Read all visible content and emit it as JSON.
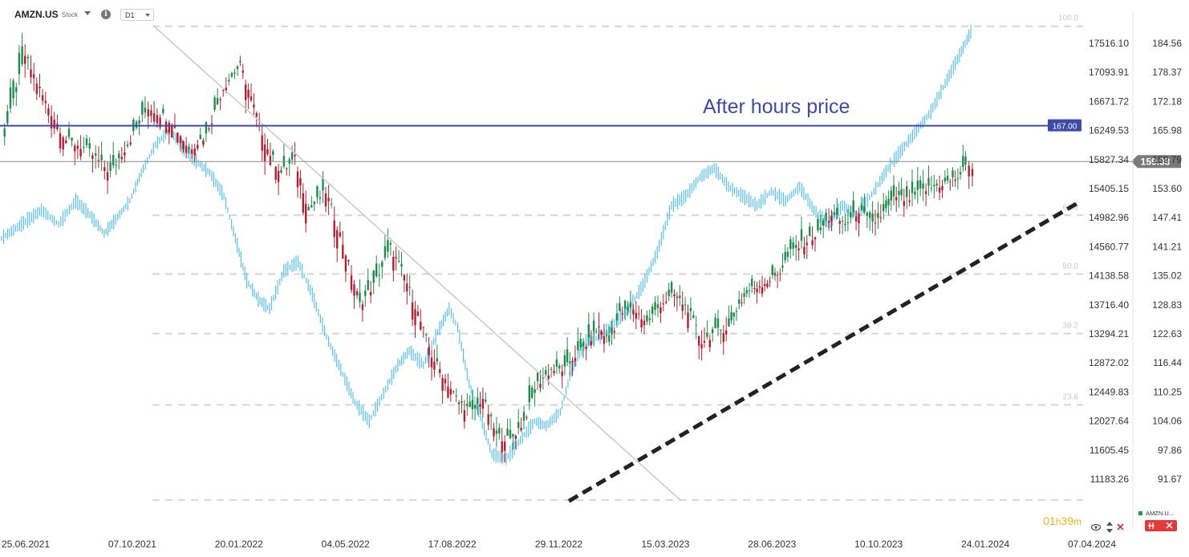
{
  "header": {
    "symbol": "AMZN.US",
    "type": "Stock",
    "timeframe": "D1"
  },
  "annotation": {
    "text": "After hours price"
  },
  "price_tags": {
    "after_hours": "167.00",
    "current": "159.38"
  },
  "countdown": {
    "hours": "01",
    "hours_unit": "h",
    "minutes": "39",
    "minutes_unit": "m"
  },
  "legend": {
    "label": "AMZN.U..."
  },
  "colors": {
    "blue_line": "#3f4aa8",
    "index_line": "#5bc0e8",
    "candle_up": "#1f8a4c",
    "candle_down": "#b02030",
    "current_tag": "#7a7a7a",
    "countdown": "#f0b020"
  },
  "chart_data": {
    "type": "line",
    "x": [
      "25.06.2021",
      "07.10.2021",
      "20.01.2022",
      "04.05.2022",
      "17.08.2022",
      "29.11.2022",
      "15.03.2023",
      "28.06.2023",
      "10.10.2023",
      "24.01.2024",
      "07.04.2024"
    ],
    "y_right_ticks": [
      184.56,
      178.37,
      172.18,
      165.98,
      159.79,
      153.6,
      147.41,
      141.21,
      135.02,
      128.83,
      122.63,
      116.44,
      110.25,
      104.06,
      97.86,
      91.67
    ],
    "y_left_ticks": [
      17516.1,
      17093.91,
      16671.72,
      16249.53,
      15827.34,
      15405.15,
      14982.96,
      14560.77,
      14138.58,
      13716.4,
      13294.21,
      12872.02,
      12449.83,
      12027.64,
      11605.45,
      11183.26
    ],
    "ylim_right": [
      86.6,
      191.4
    ],
    "fib_levels": [
      {
        "label": "100.0",
        "value": 188.2
      },
      {
        "label": "61.8",
        "value": 147.9
      },
      {
        "label": "50.0",
        "value": 135.4
      },
      {
        "label": "38.2",
        "value": 122.7
      },
      {
        "label": "23.6",
        "value": 107.5
      },
      {
        "label": "",
        "value": 87.2
      }
    ],
    "horizontal_lines": [
      {
        "name": "after_hours",
        "value": 167.0
      },
      {
        "name": "current",
        "value": 159.38
      }
    ],
    "series": [
      {
        "name": "AMZN.US",
        "points": [
          [
            0,
            165
          ],
          [
            0.3,
            182
          ],
          [
            0.6,
            172
          ],
          [
            0.9,
            164
          ],
          [
            1.2,
            162
          ],
          [
            1.55,
            157
          ],
          [
            1.8,
            163
          ],
          [
            2.1,
            171
          ],
          [
            2.45,
            168
          ],
          [
            2.7,
            162
          ],
          [
            2.95,
            165
          ],
          [
            3.2,
            175
          ],
          [
            3.45,
            180
          ],
          [
            3.65,
            171
          ],
          [
            3.85,
            162
          ],
          [
            4.05,
            157
          ],
          [
            4.25,
            160
          ],
          [
            4.45,
            149
          ],
          [
            4.7,
            153
          ],
          [
            4.95,
            142
          ],
          [
            5.2,
            129
          ],
          [
            5.4,
            133
          ],
          [
            5.65,
            141
          ],
          [
            5.85,
            135
          ],
          [
            6.05,
            127
          ],
          [
            6.25,
            118
          ],
          [
            6.45,
            113
          ],
          [
            6.65,
            108
          ],
          [
            6.85,
            106
          ],
          [
            7.0,
            109
          ],
          [
            7.2,
            101
          ],
          [
            7.4,
            100
          ],
          [
            7.6,
            104
          ],
          [
            7.8,
            112
          ],
          [
            8.0,
            115
          ],
          [
            8.2,
            115
          ],
          [
            8.35,
            118
          ],
          [
            8.55,
            121
          ],
          [
            8.7,
            124
          ],
          [
            8.85,
            121
          ],
          [
            9.0,
            127
          ],
          [
            9.2,
            128
          ],
          [
            9.4,
            125
          ],
          [
            9.6,
            129
          ],
          [
            9.8,
            131
          ],
          [
            10.0,
            128
          ],
          [
            10.2,
            121
          ],
          [
            10.4,
            123
          ],
          [
            10.6,
            124
          ],
          [
            10.75,
            129
          ],
          [
            10.9,
            132
          ],
          [
            11.05,
            133
          ],
          [
            11.2,
            134
          ],
          [
            11.35,
            136
          ],
          [
            11.5,
            140
          ],
          [
            11.7,
            142
          ],
          [
            11.9,
            144
          ],
          [
            12.1,
            148
          ],
          [
            12.3,
            146
          ],
          [
            12.5,
            149
          ],
          [
            12.7,
            146
          ],
          [
            12.9,
            149
          ],
          [
            13.05,
            152
          ],
          [
            13.2,
            151
          ],
          [
            13.4,
            153
          ],
          [
            13.6,
            154
          ],
          [
            13.8,
            155
          ],
          [
            13.95,
            156
          ],
          [
            14.1,
            159
          ],
          [
            14.2,
            157
          ]
        ]
      },
      {
        "name": "",
        "points": [
          [
            0,
            143
          ],
          [
            0.35,
            146
          ],
          [
            0.7,
            149
          ],
          [
            1.0,
            146
          ],
          [
            1.3,
            151
          ],
          [
            1.55,
            148
          ],
          [
            1.8,
            144
          ],
          [
            2.0,
            147
          ],
          [
            2.25,
            151
          ],
          [
            2.45,
            157
          ],
          [
            2.7,
            163
          ],
          [
            2.95,
            166
          ],
          [
            3.2,
            162
          ],
          [
            3.45,
            159
          ],
          [
            3.65,
            157
          ],
          [
            3.9,
            152
          ],
          [
            4.1,
            143
          ],
          [
            4.3,
            134
          ],
          [
            4.5,
            130
          ],
          [
            4.7,
            128
          ],
          [
            4.95,
            136
          ],
          [
            5.2,
            138
          ],
          [
            5.45,
            131
          ],
          [
            5.7,
            122
          ],
          [
            5.95,
            115
          ],
          [
            6.2,
            108
          ],
          [
            6.45,
            104
          ],
          [
            6.7,
            110
          ],
          [
            6.95,
            116
          ],
          [
            7.15,
            119
          ],
          [
            7.4,
            116
          ],
          [
            7.65,
            123
          ],
          [
            7.85,
            128
          ],
          [
            8.0,
            124
          ],
          [
            8.2,
            112
          ],
          [
            8.4,
            105
          ],
          [
            8.6,
            97
          ],
          [
            8.85,
            96
          ],
          [
            9.1,
            100
          ],
          [
            9.35,
            104
          ],
          [
            9.55,
            103
          ],
          [
            9.8,
            106
          ],
          [
            10.0,
            115
          ],
          [
            10.25,
            121
          ],
          [
            10.5,
            122
          ],
          [
            10.75,
            125
          ],
          [
            11.0,
            128
          ],
          [
            11.25,
            133
          ],
          [
            11.5,
            140
          ],
          [
            11.75,
            150
          ],
          [
            12.0,
            152
          ],
          [
            12.25,
            156
          ],
          [
            12.5,
            158
          ],
          [
            12.75,
            154
          ],
          [
            13.0,
            152
          ],
          [
            13.25,
            150
          ],
          [
            13.5,
            153
          ],
          [
            13.75,
            151
          ],
          [
            14.0,
            154
          ],
          [
            14.25,
            149
          ],
          [
            14.5,
            146
          ],
          [
            14.75,
            150
          ],
          [
            15.0,
            148
          ],
          [
            15.3,
            153
          ],
          [
            15.55,
            158
          ],
          [
            15.8,
            162
          ],
          [
            16.05,
            166
          ],
          [
            16.3,
            170
          ],
          [
            16.55,
            176
          ],
          [
            16.8,
            182
          ],
          [
            17.0,
            187
          ]
        ]
      }
    ],
    "trendlines": [
      {
        "style": "solid-thin",
        "from": [
          "07.10.2021",
          188.2
        ],
        "to": [
          "15.03.2023",
          87.2
        ]
      },
      {
        "style": "dashed-thick",
        "from": [
          "29.11.2022",
          87.2
        ],
        "to": [
          "07.04.2024 area",
          150.5
        ]
      }
    ]
  }
}
